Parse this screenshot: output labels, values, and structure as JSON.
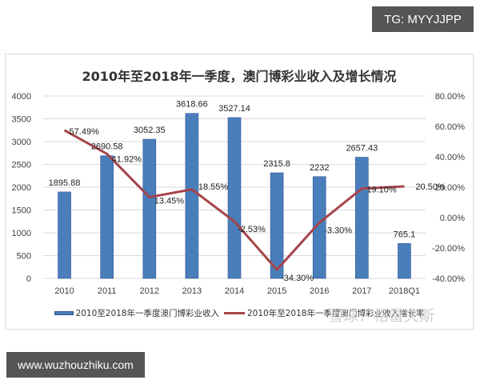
{
  "badges": {
    "top_right": "TG: MYYJJPP",
    "bottom_left": "www.wuzhouzhiku.com"
  },
  "watermark": "雪球：格雷夫斯",
  "colors": {
    "bar": "#4a7ebb",
    "bar_border": "#2f5597",
    "line": "#a5444a",
    "grid": "#d9d9d9",
    "axis_text": "#404040"
  },
  "chart_data": {
    "type": "bar+line",
    "title": "2010年至2018年一季度，澳门博彩业收入及增长情况",
    "categories": [
      "2010",
      "2011",
      "2012",
      "2013",
      "2014",
      "2015",
      "2016",
      "2017",
      "2018Q1"
    ],
    "series": [
      {
        "name": "2010至2018年一季度澳门博彩业收入",
        "type": "bar",
        "axis": "left",
        "values": [
          1895.88,
          2690.58,
          3052.35,
          3618.66,
          3527.14,
          2315.8,
          2232,
          2657.43,
          765.1
        ],
        "labels": [
          "1895.88",
          "2690.58",
          "3052.35",
          "3618.66",
          "3527.14",
          "2315.8",
          "2232",
          "2657.43",
          "765.1"
        ]
      },
      {
        "name": "2010年至2018年一季度澳门博彩业收入增长率",
        "type": "line",
        "axis": "right",
        "values": [
          57.49,
          41.92,
          13.45,
          18.55,
          -2.53,
          -34.3,
          -3.3,
          19.1,
          20.5
        ],
        "labels": [
          "57.49%",
          "41.92%",
          "13.45%",
          "18.55%",
          "-2.53%",
          "-34.30%",
          "-3.30%",
          "19.10%",
          "20.50%"
        ]
      }
    ],
    "left_axis": {
      "ylim": [
        0,
        4000
      ],
      "ticks": [
        "0",
        "500",
        "1000",
        "1500",
        "2000",
        "2500",
        "3000",
        "3500",
        "4000"
      ]
    },
    "right_axis": {
      "ylim": [
        -40,
        80
      ],
      "ticks": [
        "-40.00%",
        "-20.00%",
        "0.00%",
        "20.00%",
        "40.00%",
        "60.00%",
        "80.00%"
      ]
    },
    "grid": true,
    "legend_position": "bottom"
  }
}
